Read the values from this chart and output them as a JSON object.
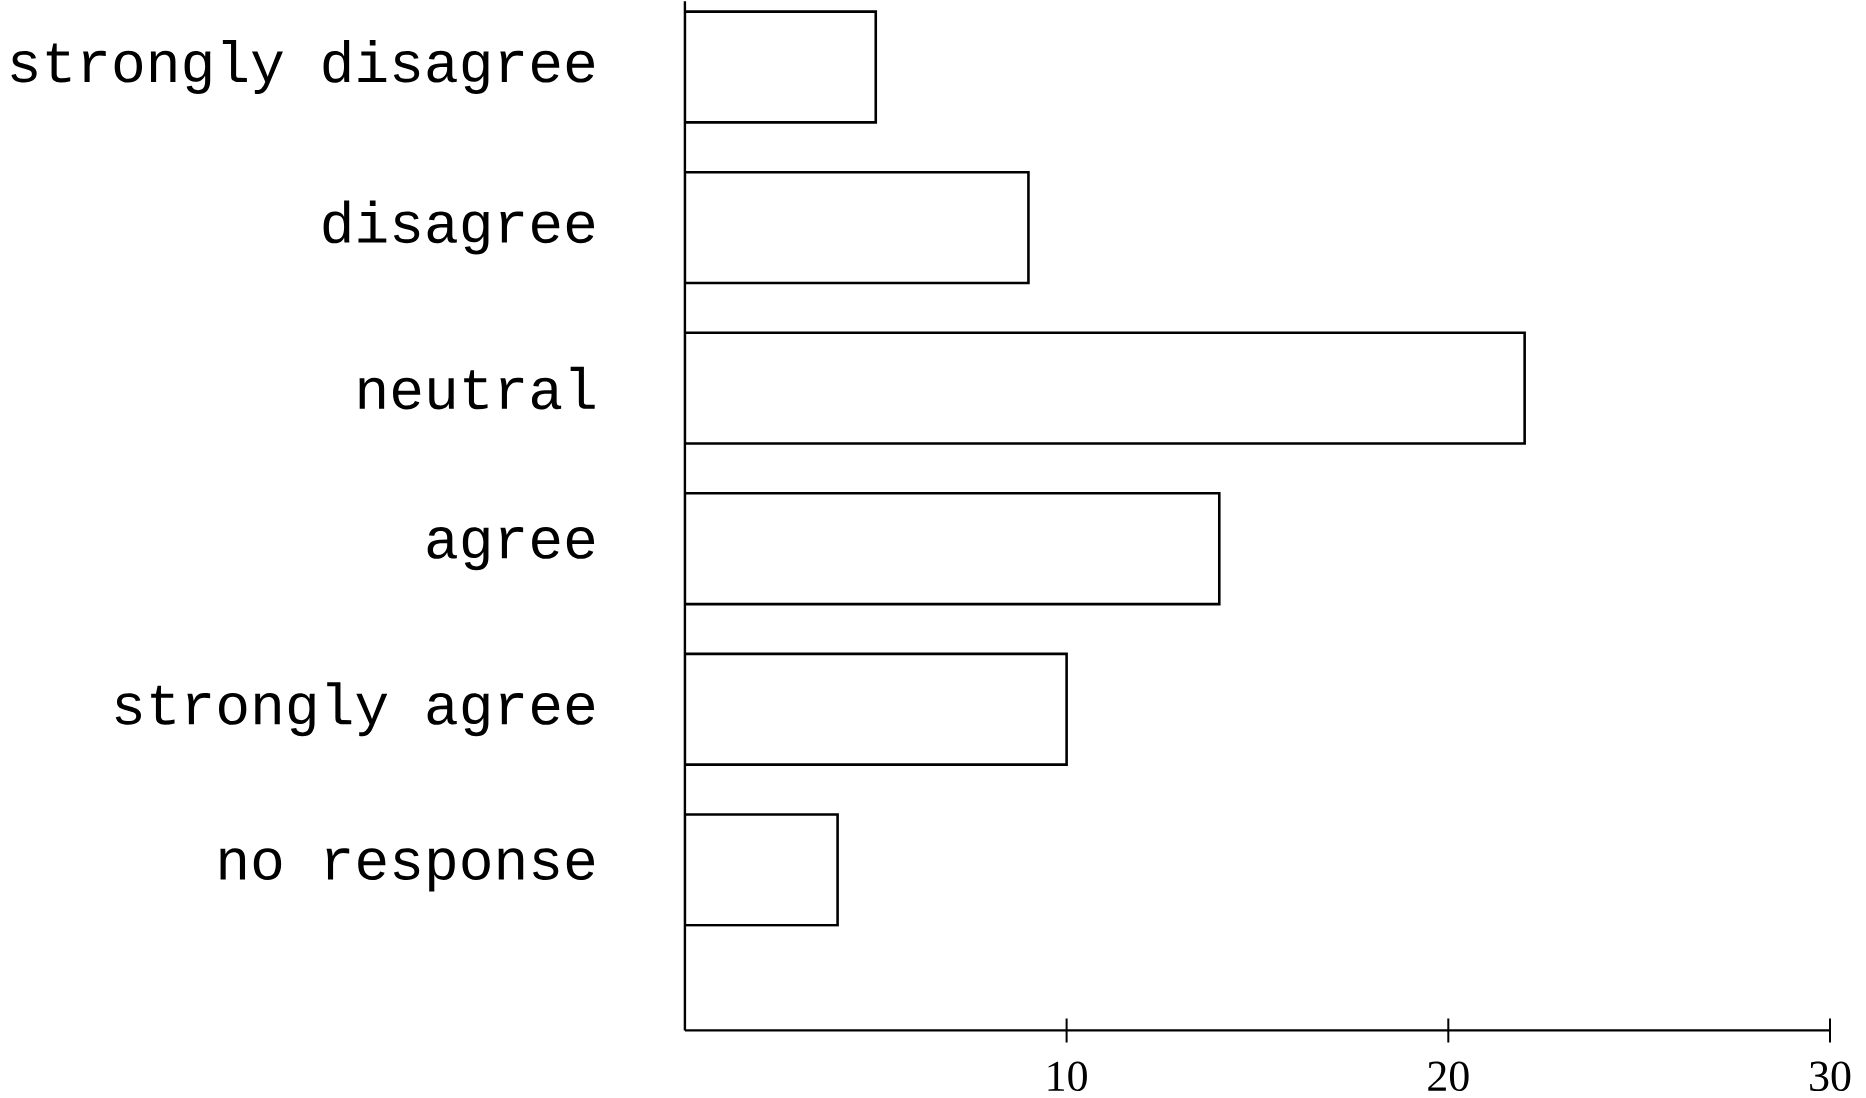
{
  "chart_data": {
    "type": "bar",
    "orientation": "horizontal",
    "categories": [
      "strongly disagree",
      "disagree",
      "neutral",
      "agree",
      "strongly agree",
      "no response"
    ],
    "values": [
      5,
      9,
      22,
      14,
      10,
      4
    ],
    "color": "#ffffff",
    "xlim": [
      0,
      30
    ],
    "xticks": [
      10,
      20,
      30
    ]
  }
}
